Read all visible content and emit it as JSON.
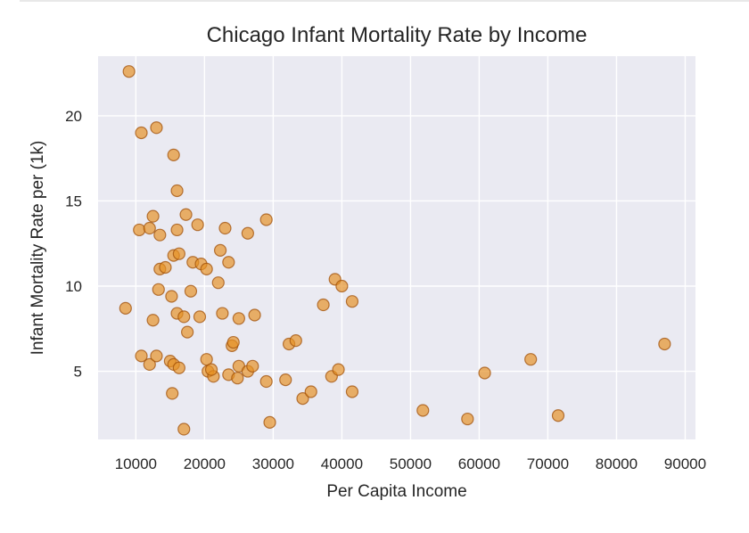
{
  "chart_data": {
    "type": "scatter",
    "title": "Chicago Infant Mortality Rate by Income",
    "xlabel": "Per Capita Income",
    "ylabel": "Infant Mortality Rate per (1k)",
    "xlim": [
      4500,
      91500
    ],
    "ylim": [
      1.0,
      23.5
    ],
    "xticks": [
      10000,
      20000,
      30000,
      40000,
      50000,
      60000,
      70000,
      80000,
      90000
    ],
    "yticks": [
      5,
      10,
      15,
      20
    ],
    "grid": true,
    "background_color": "#eaeaf2",
    "point_color": "#e69123",
    "points": [
      [
        9000,
        22.6
      ],
      [
        10800,
        19.0
      ],
      [
        13000,
        19.3
      ],
      [
        15500,
        17.7
      ],
      [
        16000,
        15.6
      ],
      [
        8500,
        8.7
      ],
      [
        10500,
        13.3
      ],
      [
        12000,
        13.4
      ],
      [
        12500,
        14.1
      ],
      [
        13500,
        13.0
      ],
      [
        16000,
        13.3
      ],
      [
        17300,
        14.2
      ],
      [
        19000,
        13.6
      ],
      [
        23000,
        13.4
      ],
      [
        26300,
        13.1
      ],
      [
        29000,
        13.9
      ],
      [
        15500,
        11.8
      ],
      [
        16300,
        11.9
      ],
      [
        13500,
        11.0
      ],
      [
        14300,
        11.1
      ],
      [
        18300,
        11.4
      ],
      [
        19500,
        11.3
      ],
      [
        20300,
        11.0
      ],
      [
        22300,
        12.1
      ],
      [
        23500,
        11.4
      ],
      [
        22000,
        10.2
      ],
      [
        13300,
        9.8
      ],
      [
        15200,
        9.4
      ],
      [
        18000,
        9.7
      ],
      [
        12500,
        8.0
      ],
      [
        16000,
        8.4
      ],
      [
        17000,
        8.2
      ],
      [
        19300,
        8.2
      ],
      [
        22600,
        8.4
      ],
      [
        25000,
        8.1
      ],
      [
        27300,
        8.3
      ],
      [
        17500,
        7.3
      ],
      [
        10800,
        5.9
      ],
      [
        12000,
        5.4
      ],
      [
        13000,
        5.9
      ],
      [
        15000,
        5.6
      ],
      [
        15500,
        5.4
      ],
      [
        16300,
        5.2
      ],
      [
        20300,
        5.7
      ],
      [
        20500,
        5.0
      ],
      [
        21300,
        4.7
      ],
      [
        21000,
        5.1
      ],
      [
        23500,
        4.8
      ],
      [
        24000,
        6.5
      ],
      [
        24200,
        6.7
      ],
      [
        25000,
        5.3
      ],
      [
        24800,
        4.6
      ],
      [
        26300,
        5.0
      ],
      [
        27000,
        5.3
      ],
      [
        29000,
        4.4
      ],
      [
        31800,
        4.5
      ],
      [
        32300,
        6.6
      ],
      [
        33300,
        6.8
      ],
      [
        15300,
        3.7
      ],
      [
        17000,
        1.6
      ],
      [
        29500,
        2.0
      ],
      [
        34300,
        3.4
      ],
      [
        35500,
        3.8
      ],
      [
        37300,
        8.9
      ],
      [
        38500,
        4.7
      ],
      [
        39000,
        10.4
      ],
      [
        39500,
        5.1
      ],
      [
        40000,
        10.0
      ],
      [
        41500,
        9.1
      ],
      [
        41500,
        3.8
      ],
      [
        51800,
        2.7
      ],
      [
        58300,
        2.2
      ],
      [
        60800,
        4.9
      ],
      [
        67500,
        5.7
      ],
      [
        71500,
        2.4
      ],
      [
        87000,
        6.6
      ]
    ]
  }
}
